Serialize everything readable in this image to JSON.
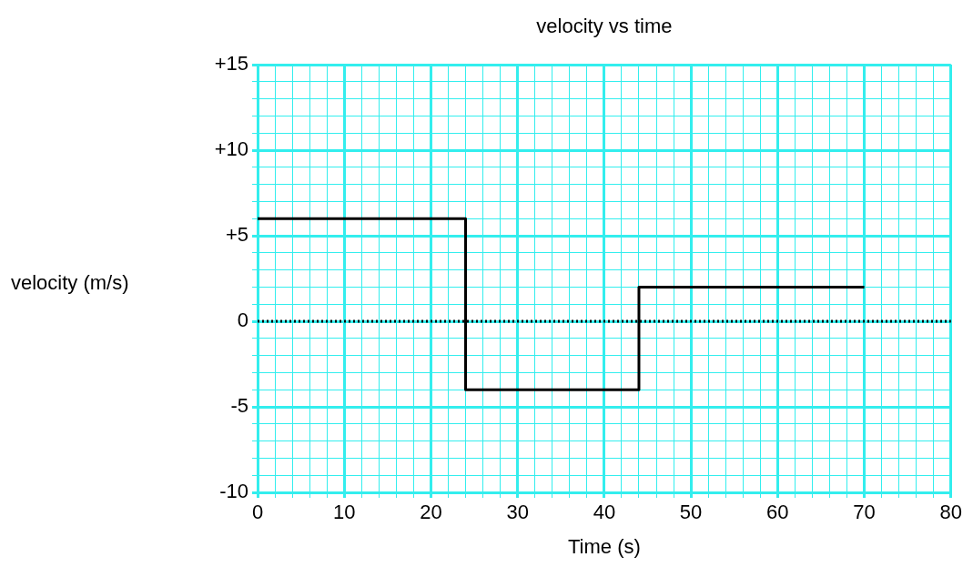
{
  "chart_data": {
    "type": "step",
    "title": "velocity vs time",
    "xlabel": "Time (s)",
    "ylabel": "velocity (m/s)",
    "x": [
      0,
      24,
      44,
      70
    ],
    "series": [
      {
        "color": "#000000",
        "values": [
          6,
          -4,
          2,
          2
        ]
      }
    ],
    "xlim": [
      0,
      80
    ],
    "ylim": [
      -10,
      15
    ],
    "xticks": [
      0,
      {
        "value": 2,
        "label": null
      },
      {
        "value": 4,
        "label": null
      },
      {
        "value": 6,
        "label": null
      },
      {
        "value": 8,
        "label": null
      },
      10,
      {
        "value": 12,
        "label": null
      },
      {
        "value": 14,
        "label": null
      },
      {
        "value": 16,
        "label": null
      },
      {
        "value": 18,
        "label": null
      },
      20,
      {
        "value": 22,
        "label": null
      },
      {
        "value": 24,
        "label": null
      },
      {
        "value": 26,
        "label": null
      },
      {
        "value": 28,
        "label": null
      },
      30,
      {
        "value": 32,
        "label": null
      },
      {
        "value": 34,
        "label": null
      },
      {
        "value": 36,
        "label": null
      },
      {
        "value": 38,
        "label": null
      },
      40,
      {
        "value": 42,
        "label": null
      },
      {
        "value": 44,
        "label": null
      },
      {
        "value": 46,
        "label": null
      },
      {
        "value": 48,
        "label": null
      },
      50,
      {
        "value": 52,
        "label": null
      },
      {
        "value": 54,
        "label": null
      },
      {
        "value": 56,
        "label": null
      },
      {
        "value": 58,
        "label": null
      },
      60,
      {
        "value": 62,
        "label": null
      },
      {
        "value": 64,
        "label": null
      },
      {
        "value": 66,
        "label": null
      },
      {
        "value": 68,
        "label": null
      },
      70,
      {
        "value": 72,
        "label": null
      },
      {
        "value": 74,
        "label": null
      },
      {
        "value": 76,
        "label": null
      },
      {
        "value": 78,
        "label": null
      },
      80
    ],
    "yticks": [
      {
        "value": -10,
        "label": "-10"
      },
      {
        "value": -9,
        "label": null
      },
      {
        "value": -8,
        "label": null
      },
      {
        "value": -7,
        "label": null
      },
      {
        "value": -6,
        "label": null
      },
      {
        "value": -5,
        "label": "-5"
      },
      {
        "value": -4,
        "label": null
      },
      {
        "value": -3,
        "label": null
      },
      {
        "value": -2,
        "label": null
      },
      {
        "value": -1,
        "label": null
      },
      {
        "value": 0,
        "label": "0"
      },
      {
        "value": 1,
        "label": null
      },
      {
        "value": 2,
        "label": null
      },
      {
        "value": 3,
        "label": null
      },
      {
        "value": 4,
        "label": null
      },
      {
        "value": 5,
        "label": "+5"
      },
      {
        "value": 6,
        "label": null
      },
      {
        "value": 7,
        "label": null
      },
      {
        "value": 8,
        "label": null
      },
      {
        "value": 9,
        "label": null
      },
      {
        "value": 10,
        "label": "+10"
      },
      {
        "value": 11,
        "label": null
      },
      {
        "value": 12,
        "label": null
      },
      {
        "value": 13,
        "label": null
      },
      {
        "value": 14,
        "label": null
      },
      {
        "value": 15,
        "label": "+15"
      }
    ],
    "grid": true,
    "legend": false,
    "marker": "none",
    "line_style": "solid",
    "ref_lines": [
      {
        "axis": "y",
        "value": 0,
        "color": "#000000",
        "line_style": "dotted"
      }
    ]
  }
}
